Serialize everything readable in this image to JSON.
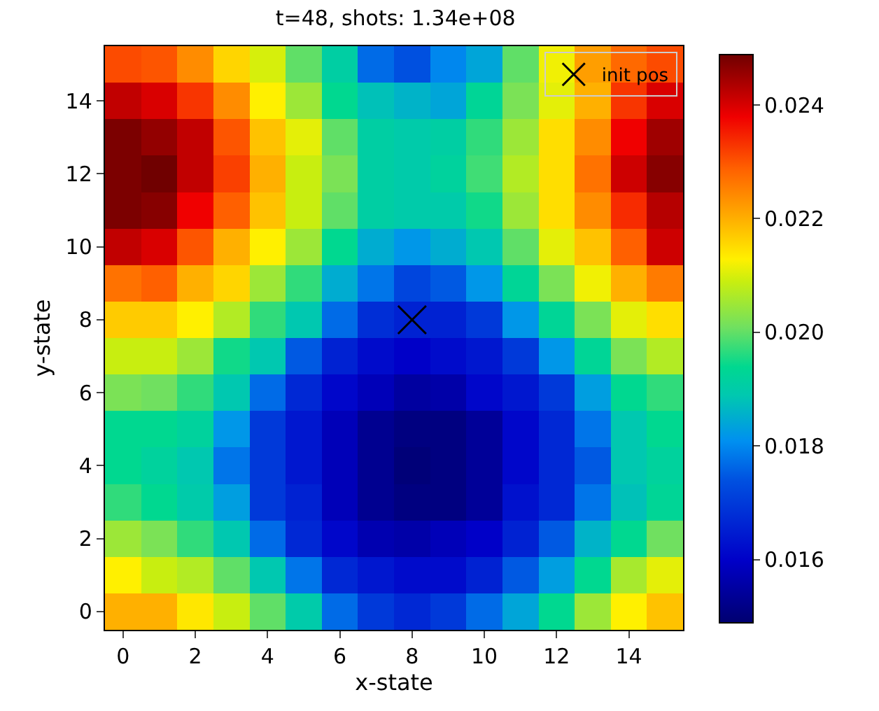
{
  "chart_data": {
    "type": "heatmap",
    "title": "t=48, shots: 1.34e+08",
    "xlabel": "x-state",
    "ylabel": "y-state",
    "x": [
      0,
      1,
      2,
      3,
      4,
      5,
      6,
      7,
      8,
      9,
      10,
      11,
      12,
      13,
      14,
      15
    ],
    "y": [
      15,
      14,
      13,
      12,
      11,
      10,
      9,
      8,
      7,
      6,
      5,
      4,
      3,
      2,
      1,
      0
    ],
    "cells": [
      [
        0.0231,
        0.023,
        0.0224,
        0.0216,
        0.021,
        0.02,
        0.0191,
        0.0177,
        0.0174,
        0.018,
        0.0184,
        0.02,
        0.0212,
        0.0222,
        0.0228,
        0.0231
      ],
      [
        0.0242,
        0.024,
        0.0233,
        0.0224,
        0.0213,
        0.0205,
        0.0194,
        0.0188,
        0.0186,
        0.0184,
        0.0193,
        0.0202,
        0.0211,
        0.022,
        0.0233,
        0.024
      ],
      [
        0.0248,
        0.0246,
        0.0242,
        0.023,
        0.0218,
        0.0211,
        0.02,
        0.0191,
        0.019,
        0.0191,
        0.0197,
        0.0205,
        0.0215,
        0.0224,
        0.0238,
        0.0245
      ],
      [
        0.0248,
        0.0249,
        0.0242,
        0.0232,
        0.022,
        0.0209,
        0.0202,
        0.0191,
        0.019,
        0.0192,
        0.0198,
        0.0207,
        0.0215,
        0.0227,
        0.0241,
        0.0247
      ],
      [
        0.0248,
        0.0247,
        0.0238,
        0.0229,
        0.0218,
        0.0209,
        0.02,
        0.0191,
        0.019,
        0.019,
        0.0195,
        0.0205,
        0.0215,
        0.0224,
        0.0234,
        0.0243
      ],
      [
        0.0242,
        0.024,
        0.023,
        0.022,
        0.0213,
        0.0205,
        0.0194,
        0.0185,
        0.0182,
        0.0185,
        0.0189,
        0.02,
        0.0211,
        0.0218,
        0.0229,
        0.0241
      ],
      [
        0.0227,
        0.0229,
        0.022,
        0.0216,
        0.0205,
        0.0197,
        0.0185,
        0.0178,
        0.0172,
        0.0175,
        0.0182,
        0.0193,
        0.0202,
        0.0212,
        0.022,
        0.0226
      ],
      [
        0.0217,
        0.0217,
        0.0213,
        0.0207,
        0.0197,
        0.0189,
        0.0177,
        0.0168,
        0.0166,
        0.0166,
        0.017,
        0.0182,
        0.0193,
        0.0202,
        0.0211,
        0.0215
      ],
      [
        0.0209,
        0.0209,
        0.0205,
        0.0195,
        0.0189,
        0.0175,
        0.0166,
        0.0162,
        0.016,
        0.0162,
        0.0164,
        0.017,
        0.0182,
        0.0193,
        0.0202,
        0.0207
      ],
      [
        0.0202,
        0.0201,
        0.0197,
        0.0189,
        0.0177,
        0.0167,
        0.0161,
        0.0158,
        0.0155,
        0.0156,
        0.0161,
        0.0164,
        0.017,
        0.0183,
        0.0194,
        0.0197
      ],
      [
        0.0194,
        0.0194,
        0.0192,
        0.0182,
        0.017,
        0.0164,
        0.0158,
        0.0153,
        0.0151,
        0.0151,
        0.0154,
        0.0161,
        0.0167,
        0.0178,
        0.0189,
        0.0194
      ],
      [
        0.0194,
        0.0192,
        0.0189,
        0.0178,
        0.017,
        0.0164,
        0.0158,
        0.0153,
        0.015,
        0.0151,
        0.0154,
        0.0161,
        0.0167,
        0.0175,
        0.0189,
        0.0192
      ],
      [
        0.0197,
        0.0194,
        0.019,
        0.0183,
        0.017,
        0.0166,
        0.0158,
        0.0153,
        0.0151,
        0.0151,
        0.0154,
        0.0163,
        0.0167,
        0.0178,
        0.0188,
        0.0193
      ],
      [
        0.0205,
        0.0202,
        0.0197,
        0.0189,
        0.0177,
        0.0167,
        0.0161,
        0.0157,
        0.0156,
        0.0158,
        0.016,
        0.0166,
        0.0175,
        0.0186,
        0.0194,
        0.0201
      ],
      [
        0.0213,
        0.0209,
        0.0207,
        0.02,
        0.0189,
        0.0178,
        0.0167,
        0.0164,
        0.0162,
        0.0162,
        0.0166,
        0.0175,
        0.0183,
        0.0194,
        0.0206,
        0.0211
      ],
      [
        0.022,
        0.022,
        0.0214,
        0.0209,
        0.02,
        0.019,
        0.0177,
        0.017,
        0.0167,
        0.017,
        0.0177,
        0.0184,
        0.0194,
        0.0205,
        0.0213,
        0.0218
      ]
    ],
    "clim": [
      0.0149,
      0.0249
    ],
    "cticks": [
      0.016,
      0.018,
      {
        "value": 0.02,
        "label": "0.020"
      },
      0.022,
      0.024
    ],
    "xlim": [
      -0.5,
      15.5
    ],
    "ylim": [
      -0.5,
      15.5
    ],
    "xticks": [
      0,
      2,
      4,
      6,
      8,
      10,
      12,
      14
    ],
    "yticks": [
      0,
      2,
      4,
      6,
      8,
      10,
      12,
      14
    ],
    "series": [
      {
        "type": "scatter",
        "name": "init pos",
        "color": "#000000",
        "marker": "cross",
        "x": [
          8
        ],
        "values": [
          8
        ]
      }
    ],
    "legend": "top right"
  }
}
